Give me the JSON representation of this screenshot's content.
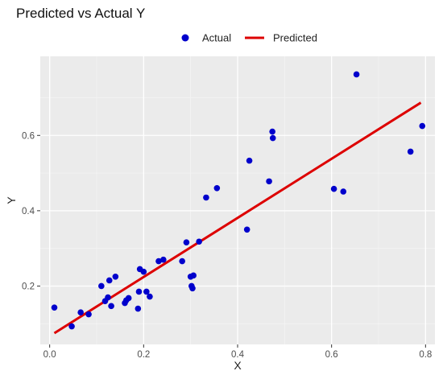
{
  "chart_data": {
    "type": "scatter",
    "title": "Predicted vs Actual Y",
    "xlabel": "X",
    "ylabel": "Y",
    "xlim": [
      -0.02,
      0.82
    ],
    "ylim": [
      0.045,
      0.81
    ],
    "x_ticks": [
      0.0,
      0.2,
      0.4,
      0.6,
      0.8
    ],
    "x_tick_labels": [
      "0.0",
      "0.2",
      "0.4",
      "0.6",
      "0.8"
    ],
    "y_ticks": [
      0.2,
      0.4,
      0.6
    ],
    "y_tick_labels": [
      "0.2",
      "0.4",
      "0.6"
    ],
    "grid": true,
    "legend_position": "top",
    "series": [
      {
        "name": "Actual",
        "kind": "points",
        "color": "#0000cc",
        "points": [
          [
            0.01,
            0.143
          ],
          [
            0.047,
            0.093
          ],
          [
            0.066,
            0.13
          ],
          [
            0.083,
            0.125
          ],
          [
            0.11,
            0.2
          ],
          [
            0.118,
            0.16
          ],
          [
            0.124,
            0.17
          ],
          [
            0.127,
            0.215
          ],
          [
            0.131,
            0.147
          ],
          [
            0.14,
            0.225
          ],
          [
            0.16,
            0.155
          ],
          [
            0.163,
            0.162
          ],
          [
            0.168,
            0.168
          ],
          [
            0.188,
            0.14
          ],
          [
            0.19,
            0.185
          ],
          [
            0.192,
            0.245
          ],
          [
            0.2,
            0.238
          ],
          [
            0.206,
            0.185
          ],
          [
            0.213,
            0.172
          ],
          [
            0.232,
            0.266
          ],
          [
            0.242,
            0.27
          ],
          [
            0.282,
            0.266
          ],
          [
            0.291,
            0.316
          ],
          [
            0.3,
            0.225
          ],
          [
            0.302,
            0.2
          ],
          [
            0.304,
            0.194
          ],
          [
            0.306,
            0.228
          ],
          [
            0.318,
            0.318
          ],
          [
            0.333,
            0.435
          ],
          [
            0.356,
            0.46
          ],
          [
            0.42,
            0.35
          ],
          [
            0.425,
            0.533
          ],
          [
            0.467,
            0.478
          ],
          [
            0.474,
            0.61
          ],
          [
            0.475,
            0.593
          ],
          [
            0.605,
            0.458
          ],
          [
            0.625,
            0.451
          ],
          [
            0.653,
            0.762
          ],
          [
            0.768,
            0.557
          ],
          [
            0.793,
            0.625
          ]
        ]
      },
      {
        "name": "Predicted",
        "kind": "line",
        "color": "#dd0000",
        "points": [
          [
            0.01,
            0.075
          ],
          [
            0.79,
            0.687
          ]
        ]
      }
    ]
  }
}
